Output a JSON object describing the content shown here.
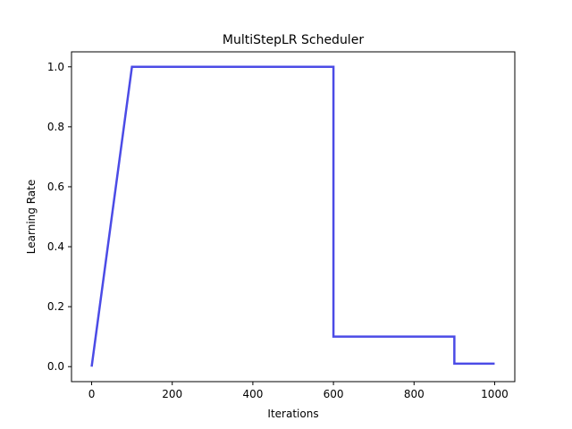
{
  "chart_data": {
    "type": "line",
    "title": "MultiStepLR Scheduler",
    "xlabel": "Iterations",
    "ylabel": "Learning Rate",
    "xlim": [
      -50,
      1050
    ],
    "ylim": [
      -0.05,
      1.05
    ],
    "xticks": [
      0,
      200,
      400,
      600,
      800,
      1000
    ],
    "yticks": [
      0.0,
      0.2,
      0.4,
      0.6,
      0.8,
      1.0
    ],
    "xtick_labels": [
      "0",
      "200",
      "400",
      "600",
      "800",
      "1000"
    ],
    "ytick_labels": [
      "0.0",
      "0.2",
      "0.4",
      "0.6",
      "0.8",
      "1.0"
    ],
    "grid": false,
    "series": [
      {
        "color": "#4b4be6",
        "x": [
          0,
          100,
          600,
          600,
          900,
          900,
          1000
        ],
        "y": [
          0.0,
          1.0,
          1.0,
          0.1,
          0.1,
          0.01,
          0.01
        ]
      }
    ]
  }
}
